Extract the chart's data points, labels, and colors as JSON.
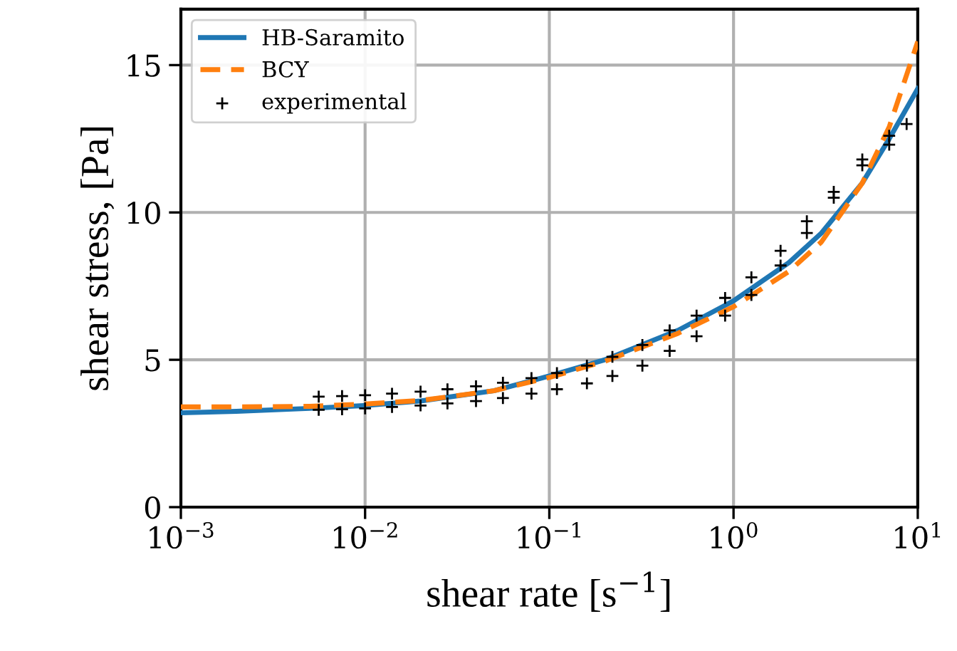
{
  "chart_data": {
    "type": "line",
    "xlabel": "shear rate [s$^{−1}$]",
    "ylabel": "shear stress, [Pa]",
    "log": "x",
    "xlim": [
      0.001,
      10
    ],
    "ylim": [
      0,
      16.9
    ],
    "xticks": [
      {
        "value": 0.001,
        "label": "10$^{−3}$"
      },
      {
        "value": 0.01,
        "label": "10$^{−2}$"
      },
      {
        "value": 0.1,
        "label": "10$^{−1}$"
      },
      {
        "value": 1,
        "label": "10$^{0}$"
      },
      {
        "value": 10,
        "label": "10$^{1}$"
      }
    ],
    "yticks": [
      0,
      5,
      10,
      15
    ],
    "grid": true,
    "legend": "top left",
    "series": [
      {
        "name": "HB-Saramito",
        "color": "#1f77b4",
        "line_style": "solid",
        "x": [
          0.001,
          0.002,
          0.005,
          0.01,
          0.02,
          0.05,
          0.1,
          0.2,
          0.5,
          1,
          2,
          3,
          5,
          7,
          10
        ],
        "values": [
          3.2,
          3.25,
          3.35,
          3.45,
          3.6,
          3.95,
          4.45,
          5.0,
          6.0,
          7.0,
          8.3,
          9.3,
          11.0,
          12.5,
          14.2
        ]
      },
      {
        "name": "BCY",
        "color": "#ff7f0e",
        "line_style": "dashed",
        "x": [
          0.001,
          0.002,
          0.005,
          0.01,
          0.02,
          0.05,
          0.1,
          0.2,
          0.5,
          1,
          2,
          3,
          5,
          7,
          10
        ],
        "values": [
          3.4,
          3.4,
          3.42,
          3.5,
          3.62,
          3.95,
          4.4,
          4.95,
          5.9,
          6.8,
          8.0,
          9.0,
          11.0,
          12.9,
          15.8
        ]
      },
      {
        "name": "experimental",
        "type": "scatter",
        "color": "#000000",
        "marker": "cross",
        "x": [
          0.0056,
          0.0075,
          0.01,
          0.014,
          0.02,
          0.028,
          0.04,
          0.056,
          0.08,
          0.11,
          0.16,
          0.22,
          0.32,
          0.45,
          0.63,
          0.9,
          1.25,
          1.8,
          2.5,
          3.5,
          5,
          7,
          8.7,
          0.0056,
          0.0075,
          0.01,
          0.014,
          0.02,
          0.028,
          0.04,
          0.056,
          0.08,
          0.11,
          0.16,
          0.22,
          0.32,
          0.45,
          0.63,
          0.9,
          1.25,
          1.8,
          2.5,
          3.5,
          5,
          7
        ],
        "values": [
          3.75,
          3.77,
          3.8,
          3.85,
          3.92,
          4.0,
          4.1,
          4.22,
          4.38,
          4.55,
          4.8,
          5.1,
          5.5,
          6.0,
          6.5,
          7.1,
          7.8,
          8.7,
          9.7,
          10.7,
          11.8,
          12.6,
          13.0,
          3.3,
          3.32,
          3.35,
          3.4,
          3.45,
          3.52,
          3.6,
          3.7,
          3.85,
          4.0,
          4.2,
          4.45,
          4.8,
          5.3,
          5.8,
          6.5,
          7.2,
          8.2,
          9.3,
          10.5,
          11.6,
          12.3
        ]
      }
    ]
  }
}
